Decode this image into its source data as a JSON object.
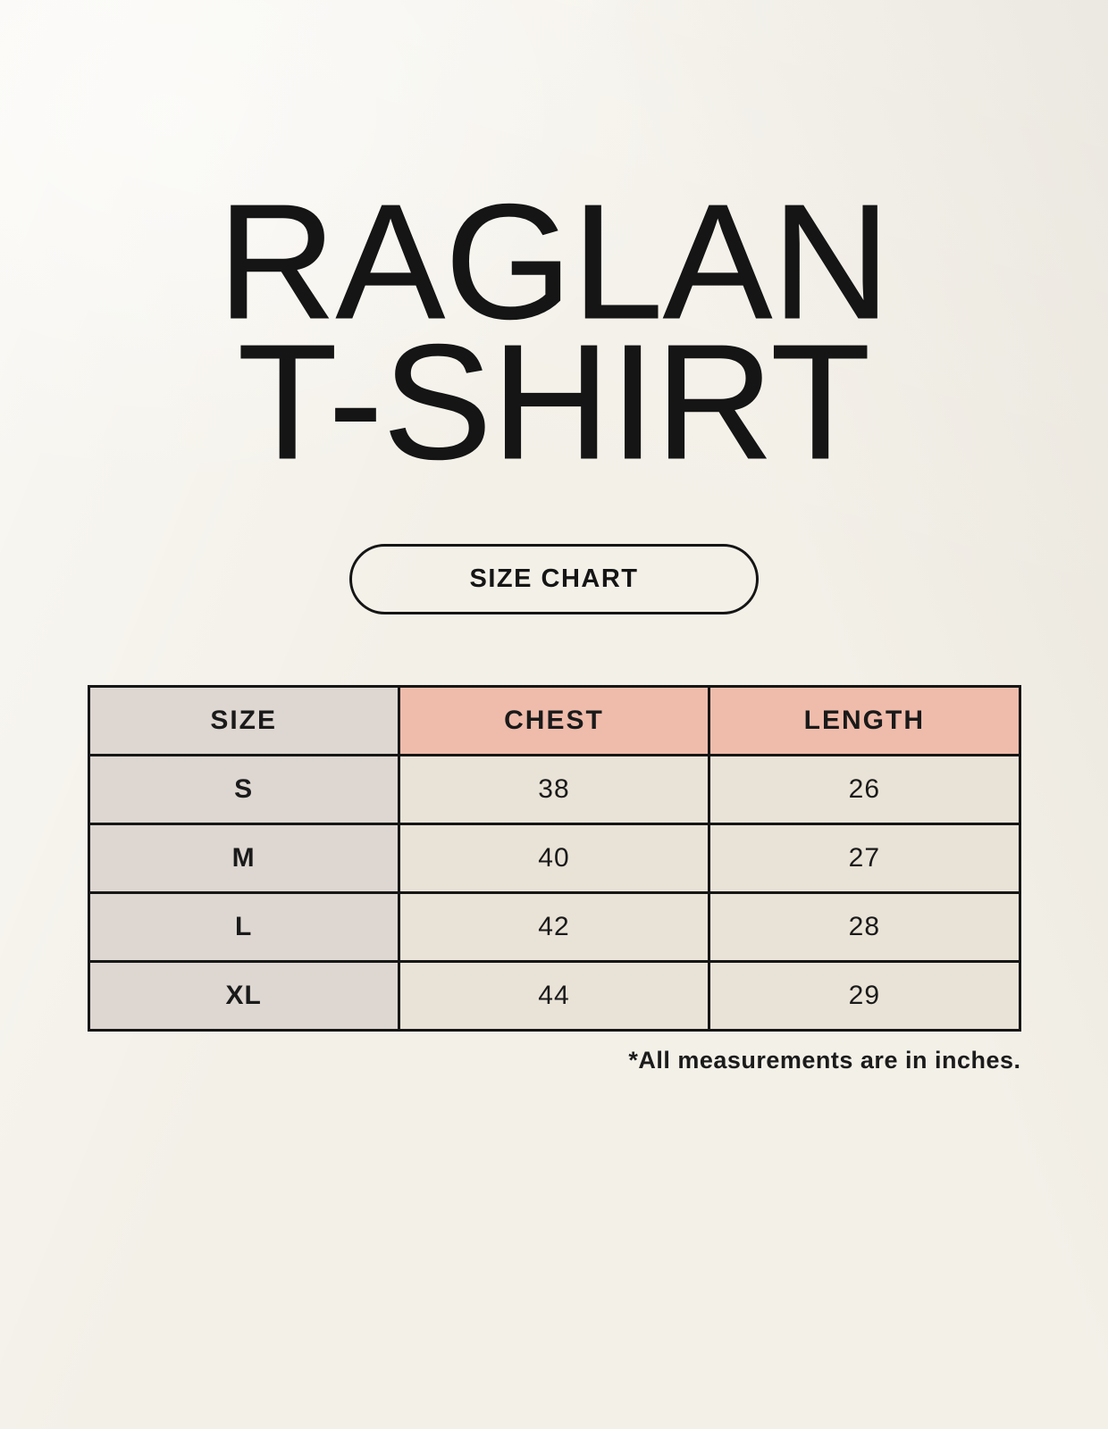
{
  "header": {
    "title_line1": "RAGLAN",
    "title_line2": "T-SHIRT"
  },
  "size_chart_button": {
    "label": "SIZE CHART"
  },
  "table": {
    "columns": [
      "SIZE",
      "CHEST",
      "LENGTH"
    ],
    "rows": [
      {
        "size": "S",
        "chest": "38",
        "length": "26"
      },
      {
        "size": "M",
        "chest": "40",
        "length": "27"
      },
      {
        "size": "L",
        "chest": "42",
        "length": "28"
      },
      {
        "size": "XL",
        "chest": "44",
        "length": "29"
      }
    ]
  },
  "footnote": "*All measurements are in inches.",
  "colors": {
    "background": "#f3f0e8",
    "header_pink": "#efbcab",
    "column_gray": "#ddd6d1",
    "cell_beige": "#e9e2d7",
    "border": "#161616",
    "text": "#151515"
  },
  "chart_data": {
    "type": "table",
    "title": "RAGLAN T-SHIRT",
    "columns": [
      "SIZE",
      "CHEST",
      "LENGTH"
    ],
    "rows": [
      [
        "S",
        38,
        26
      ],
      [
        "M",
        40,
        27
      ],
      [
        "L",
        42,
        28
      ],
      [
        "XL",
        44,
        29
      ]
    ],
    "units": "inches",
    "note": "*All measurements are in inches."
  }
}
